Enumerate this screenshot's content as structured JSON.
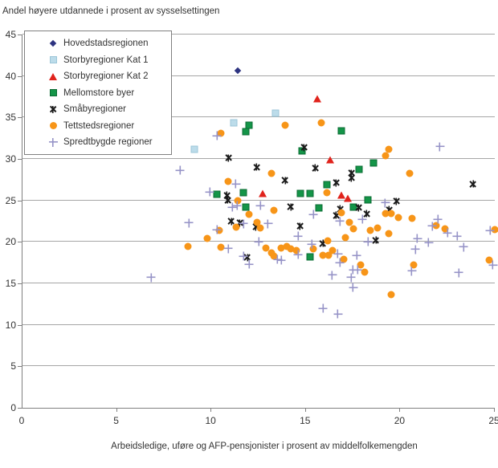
{
  "title": "Andel høyere utdannede i prosent av sysselsettingen",
  "x_axis_title": "Arbeidsledige, uføre og AFP-pensjonister i prosent av middelfolkemengden",
  "chart_data": {
    "type": "scatter",
    "title": "Andel høyere utdannede i prosent av sysselsettingen",
    "xlabel": "Arbeidsledige, uføre og AFP-pensjonister i prosent av middelfolkemengden",
    "ylabel": "",
    "xlim": [
      0,
      25
    ],
    "ylim": [
      0,
      45
    ],
    "x_ticks": [
      0,
      5,
      10,
      15,
      20,
      25
    ],
    "y_ticks": [
      0,
      5,
      10,
      15,
      20,
      25,
      30,
      35,
      40,
      45
    ],
    "grid": "horizontal",
    "gridline_color": "#a6a6a6",
    "axis_color": "#808080",
    "legend_position": "top-left",
    "series": [
      {
        "name": "Hovedstadsregionen",
        "marker": "diamond",
        "color": "#2d3380",
        "points": [
          [
            11.4,
            40.6
          ]
        ]
      },
      {
        "name": "Storbyregioner Kat 1",
        "marker": "square",
        "color": "#bcdcea",
        "border": "#9cc6d8",
        "points": [
          [
            9.1,
            31.2
          ],
          [
            11.2,
            34.4
          ],
          [
            13.4,
            35.5
          ]
        ]
      },
      {
        "name": "Storbyregioner Kat 2",
        "marker": "triangle",
        "color": "#e0231c",
        "points": [
          [
            12.7,
            25.8
          ],
          [
            15.6,
            37.3
          ],
          [
            16.3,
            29.9
          ],
          [
            16.9,
            25.6
          ],
          [
            17.2,
            25.3
          ]
        ]
      },
      {
        "name": "Mellomstore byer",
        "marker": "square-lg",
        "color": "#149548",
        "border": "#0b6b33",
        "points": [
          [
            10.3,
            25.7
          ],
          [
            11.7,
            25.9
          ],
          [
            11.8,
            33.3
          ],
          [
            11.8,
            24.2
          ],
          [
            12.0,
            34.1
          ],
          [
            14.7,
            25.8
          ],
          [
            14.8,
            31.0
          ],
          [
            15.2,
            25.8
          ],
          [
            15.2,
            18.2
          ],
          [
            15.7,
            24.1
          ],
          [
            16.1,
            26.9
          ],
          [
            16.9,
            33.4
          ],
          [
            17.5,
            24.2
          ],
          [
            17.8,
            28.7
          ],
          [
            18.3,
            25.1
          ],
          [
            18.6,
            29.5
          ]
        ]
      },
      {
        "name": "Småbyregioner",
        "marker": "star",
        "color": "#1a1a1a",
        "points": [
          [
            10.8,
            25.6
          ],
          [
            10.85,
            25.05
          ],
          [
            10.9,
            30.1
          ],
          [
            11.05,
            22.5
          ],
          [
            11.5,
            22.3
          ],
          [
            11.9,
            18.1
          ],
          [
            12.35,
            21.8
          ],
          [
            12.4,
            29.0
          ],
          [
            13.9,
            27.4
          ],
          [
            14.2,
            24.2
          ],
          [
            14.7,
            21.9
          ],
          [
            14.9,
            31.4
          ],
          [
            15.5,
            28.9
          ],
          [
            15.9,
            19.8
          ],
          [
            16.6,
            27.1
          ],
          [
            16.6,
            23.2
          ],
          [
            16.8,
            24.0
          ],
          [
            17.4,
            28.3
          ],
          [
            17.4,
            27.7
          ],
          [
            17.8,
            24.1
          ],
          [
            18.2,
            23.4
          ],
          [
            18.7,
            20.2
          ],
          [
            19.4,
            23.9
          ],
          [
            19.8,
            24.9
          ],
          [
            23.85,
            27.0
          ]
        ]
      },
      {
        "name": "Tettstedsregioner",
        "marker": "circle",
        "color": "#f79518",
        "points": [
          [
            8.75,
            19.5
          ],
          [
            9.8,
            20.4
          ],
          [
            10.4,
            21.4
          ],
          [
            10.5,
            33.1
          ],
          [
            10.5,
            19.4
          ],
          [
            10.9,
            27.3
          ],
          [
            11.3,
            21.8
          ],
          [
            11.4,
            25.0
          ],
          [
            12.0,
            23.3
          ],
          [
            12.4,
            22.4
          ],
          [
            12.6,
            21.7
          ],
          [
            12.9,
            19.3
          ],
          [
            13.2,
            28.3
          ],
          [
            13.2,
            18.7
          ],
          [
            13.3,
            23.8
          ],
          [
            13.3,
            18.3
          ],
          [
            13.7,
            19.3
          ],
          [
            13.9,
            34.1
          ],
          [
            14.0,
            19.5
          ],
          [
            14.2,
            19.2
          ],
          [
            14.5,
            19.0
          ],
          [
            15.4,
            19.2
          ],
          [
            15.8,
            34.4
          ],
          [
            15.9,
            18.4
          ],
          [
            16.1,
            25.9
          ],
          [
            16.15,
            20.1
          ],
          [
            16.2,
            18.4
          ],
          [
            16.4,
            19.0
          ],
          [
            16.9,
            23.5
          ],
          [
            17.0,
            17.9
          ],
          [
            17.1,
            20.5
          ],
          [
            17.3,
            22.4
          ],
          [
            17.5,
            21.6
          ],
          [
            17.9,
            17.2
          ],
          [
            18.1,
            16.4
          ],
          [
            18.4,
            21.4
          ],
          [
            18.8,
            21.7
          ],
          [
            19.2,
            30.4
          ],
          [
            19.2,
            23.4
          ],
          [
            19.4,
            31.2
          ],
          [
            19.4,
            21.0
          ],
          [
            19.5,
            23.4
          ],
          [
            19.5,
            13.6
          ],
          [
            19.9,
            22.9
          ],
          [
            20.5,
            28.3
          ],
          [
            20.6,
            22.8
          ],
          [
            20.7,
            17.2
          ],
          [
            21.9,
            22.0
          ],
          [
            22.35,
            21.6
          ],
          [
            24.7,
            17.8
          ],
          [
            25.0,
            21.5
          ]
        ]
      },
      {
        "name": "Spredtbygde regioner",
        "marker": "plus",
        "color": "#9693c7",
        "points": [
          [
            6.8,
            15.7
          ],
          [
            8.35,
            28.6
          ],
          [
            8.8,
            22.3
          ],
          [
            9.9,
            26.0
          ],
          [
            10.3,
            32.8
          ],
          [
            10.3,
            21.5
          ],
          [
            10.9,
            19.2
          ],
          [
            11.1,
            24.2
          ],
          [
            11.35,
            24.4
          ],
          [
            11.3,
            27.0
          ],
          [
            11.7,
            22.2
          ],
          [
            11.7,
            18.3
          ],
          [
            12.0,
            17.3
          ],
          [
            12.5,
            20.0
          ],
          [
            12.6,
            24.4
          ],
          [
            13.0,
            22.2
          ],
          [
            13.5,
            17.9
          ],
          [
            13.7,
            17.8
          ],
          [
            14.6,
            20.7
          ],
          [
            14.6,
            18.5
          ],
          [
            15.3,
            19.7
          ],
          [
            15.4,
            23.3
          ],
          [
            15.9,
            12.0
          ],
          [
            16.4,
            16.0
          ],
          [
            16.7,
            18.6
          ],
          [
            16.7,
            11.3
          ],
          [
            16.8,
            22.5
          ],
          [
            16.8,
            17.5
          ],
          [
            17.4,
            15.7
          ],
          [
            17.5,
            16.6
          ],
          [
            17.5,
            14.5
          ],
          [
            17.75,
            16.6
          ],
          [
            17.7,
            18.4
          ],
          [
            18.0,
            22.7
          ],
          [
            18.3,
            20.0
          ],
          [
            19.2,
            24.7
          ],
          [
            20.6,
            16.5
          ],
          [
            20.8,
            19.1
          ],
          [
            20.9,
            20.4
          ],
          [
            21.5,
            19.9
          ],
          [
            21.7,
            21.9
          ],
          [
            22.0,
            22.7
          ],
          [
            22.1,
            31.5
          ],
          [
            22.5,
            21.1
          ],
          [
            23.0,
            20.7
          ],
          [
            23.1,
            16.3
          ],
          [
            23.35,
            19.4
          ],
          [
            24.75,
            21.4
          ],
          [
            24.9,
            17.2
          ]
        ]
      }
    ]
  }
}
